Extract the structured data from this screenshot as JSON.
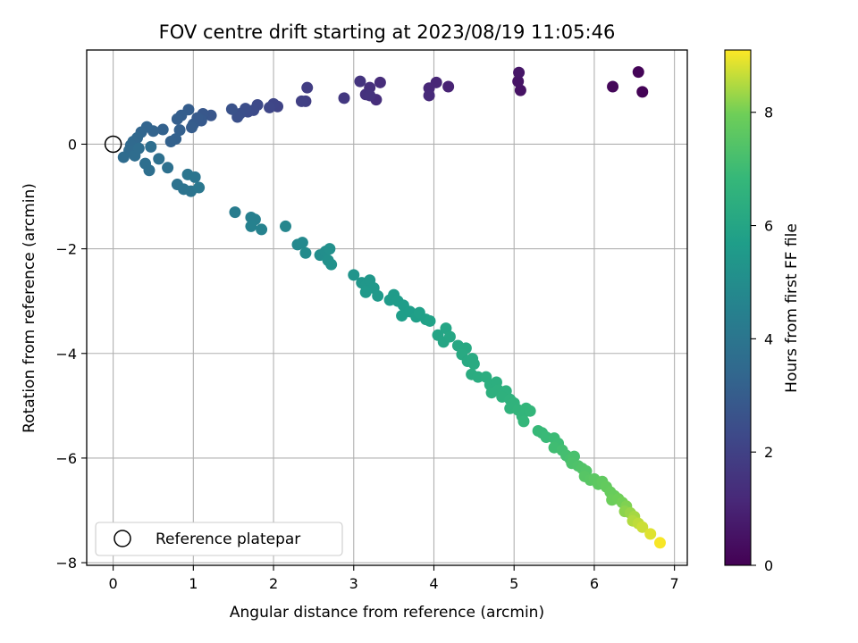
{
  "chart_data": {
    "type": "scatter",
    "title": "FOV centre drift starting at 2023/08/19 11:05:46",
    "xlabel": "Angular distance from reference (arcmin)",
    "ylabel": "Rotation from reference (arcmin)",
    "xlim": [
      -0.33,
      7.16
    ],
    "ylim": [
      -8.05,
      1.8
    ],
    "x_ticks": [
      0,
      1,
      2,
      3,
      4,
      5,
      6,
      7
    ],
    "y_ticks": [
      -8,
      -6,
      -4,
      -2,
      0
    ],
    "grid": true,
    "legend": {
      "position": "lower-left",
      "entries": [
        "Reference platepar"
      ]
    },
    "reference_point": {
      "x": 0,
      "y": 0,
      "label": "Reference platepar"
    },
    "colorbar": {
      "label": "Hours from first FF file",
      "range": [
        0,
        9.1
      ],
      "ticks": [
        0,
        2,
        4,
        6,
        8
      ],
      "colormap": "viridis"
    },
    "points": [
      {
        "x": 6.6,
        "y": 1.0,
        "t": 0.05
      },
      {
        "x": 6.55,
        "y": 1.38,
        "t": 0.1
      },
      {
        "x": 6.23,
        "y": 1.1,
        "t": 0.2
      },
      {
        "x": 5.08,
        "y": 1.03,
        "t": 0.5
      },
      {
        "x": 5.05,
        "y": 1.2,
        "t": 0.55
      },
      {
        "x": 5.06,
        "y": 1.37,
        "t": 0.6
      },
      {
        "x": 4.18,
        "y": 1.1,
        "t": 1.0
      },
      {
        "x": 4.03,
        "y": 1.18,
        "t": 1.1
      },
      {
        "x": 3.94,
        "y": 1.07,
        "t": 1.15
      },
      {
        "x": 3.94,
        "y": 0.93,
        "t": 1.2
      },
      {
        "x": 3.33,
        "y": 1.18,
        "t": 1.3
      },
      {
        "x": 3.28,
        "y": 0.85,
        "t": 1.35
      },
      {
        "x": 3.2,
        "y": 1.08,
        "t": 1.4
      },
      {
        "x": 3.15,
        "y": 0.95,
        "t": 1.45
      },
      {
        "x": 3.2,
        "y": 0.93,
        "t": 1.5
      },
      {
        "x": 3.08,
        "y": 1.2,
        "t": 1.55
      },
      {
        "x": 2.88,
        "y": 0.88,
        "t": 1.7
      },
      {
        "x": 2.42,
        "y": 1.08,
        "t": 1.85
      },
      {
        "x": 2.4,
        "y": 0.82,
        "t": 1.9
      },
      {
        "x": 2.35,
        "y": 0.82,
        "t": 1.95
      },
      {
        "x": 2.05,
        "y": 0.72,
        "t": 2.1
      },
      {
        "x": 2.0,
        "y": 0.77,
        "t": 2.15
      },
      {
        "x": 1.95,
        "y": 0.7,
        "t": 2.2
      },
      {
        "x": 1.8,
        "y": 0.75,
        "t": 2.3
      },
      {
        "x": 1.75,
        "y": 0.65,
        "t": 2.35
      },
      {
        "x": 1.68,
        "y": 0.62,
        "t": 2.4
      },
      {
        "x": 1.65,
        "y": 0.68,
        "t": 2.45
      },
      {
        "x": 1.58,
        "y": 0.58,
        "t": 2.5
      },
      {
        "x": 1.55,
        "y": 0.52,
        "t": 2.55
      },
      {
        "x": 1.48,
        "y": 0.67,
        "t": 2.6
      },
      {
        "x": 1.22,
        "y": 0.55,
        "t": 2.75
      },
      {
        "x": 1.12,
        "y": 0.58,
        "t": 2.8
      },
      {
        "x": 1.1,
        "y": 0.45,
        "t": 2.85
      },
      {
        "x": 1.05,
        "y": 0.5,
        "t": 2.9
      },
      {
        "x": 1.0,
        "y": 0.38,
        "t": 2.95
      },
      {
        "x": 0.98,
        "y": 0.32,
        "t": 3.0
      },
      {
        "x": 0.94,
        "y": 0.66,
        "t": 3.02
      },
      {
        "x": 0.85,
        "y": 0.55,
        "t": 3.05
      },
      {
        "x": 0.8,
        "y": 0.48,
        "t": 3.1
      },
      {
        "x": 0.83,
        "y": 0.27,
        "t": 3.12
      },
      {
        "x": 0.78,
        "y": 0.1,
        "t": 3.15
      },
      {
        "x": 0.72,
        "y": 0.05,
        "t": 3.18
      },
      {
        "x": 0.62,
        "y": 0.28,
        "t": 3.2
      },
      {
        "x": 0.5,
        "y": 0.25,
        "t": 3.25
      },
      {
        "x": 0.42,
        "y": 0.33,
        "t": 3.3
      },
      {
        "x": 0.35,
        "y": 0.23,
        "t": 3.35
      },
      {
        "x": 0.3,
        "y": 0.12,
        "t": 3.4
      },
      {
        "x": 0.25,
        "y": 0.05,
        "t": 3.45
      },
      {
        "x": 0.22,
        "y": -0.02,
        "t": 3.5
      },
      {
        "x": 0.2,
        "y": -0.12,
        "t": 3.55
      },
      {
        "x": 0.13,
        "y": -0.25,
        "t": 3.6
      },
      {
        "x": 0.27,
        "y": -0.22,
        "t": 3.62
      },
      {
        "x": 0.32,
        "y": -0.08,
        "t": 3.65
      },
      {
        "x": 0.47,
        "y": -0.05,
        "t": 3.68
      },
      {
        "x": 0.4,
        "y": -0.37,
        "t": 3.7
      },
      {
        "x": 0.45,
        "y": -0.5,
        "t": 3.72
      },
      {
        "x": 0.57,
        "y": -0.28,
        "t": 3.75
      },
      {
        "x": 0.68,
        "y": -0.45,
        "t": 3.78
      },
      {
        "x": 0.8,
        "y": -0.77,
        "t": 3.85
      },
      {
        "x": 0.88,
        "y": -0.86,
        "t": 3.9
      },
      {
        "x": 0.97,
        "y": -0.9,
        "t": 3.95
      },
      {
        "x": 0.93,
        "y": -0.58,
        "t": 3.98
      },
      {
        "x": 1.02,
        "y": -0.63,
        "t": 4.0
      },
      {
        "x": 1.07,
        "y": -0.83,
        "t": 4.05
      },
      {
        "x": 1.52,
        "y": -1.3,
        "t": 4.3
      },
      {
        "x": 1.72,
        "y": -1.4,
        "t": 4.4
      },
      {
        "x": 1.77,
        "y": -1.44,
        "t": 4.45
      },
      {
        "x": 1.72,
        "y": -1.57,
        "t": 4.5
      },
      {
        "x": 1.85,
        "y": -1.63,
        "t": 4.55
      },
      {
        "x": 2.15,
        "y": -1.57,
        "t": 4.7
      },
      {
        "x": 2.3,
        "y": -1.92,
        "t": 4.8
      },
      {
        "x": 2.36,
        "y": -1.88,
        "t": 4.85
      },
      {
        "x": 2.4,
        "y": -2.08,
        "t": 4.9
      },
      {
        "x": 2.58,
        "y": -2.12,
        "t": 5.0
      },
      {
        "x": 2.65,
        "y": -2.05,
        "t": 5.05
      },
      {
        "x": 2.7,
        "y": -2.0,
        "t": 5.1
      },
      {
        "x": 2.68,
        "y": -2.22,
        "t": 5.12
      },
      {
        "x": 2.72,
        "y": -2.3,
        "t": 5.15
      },
      {
        "x": 3.0,
        "y": -2.5,
        "t": 5.3
      },
      {
        "x": 3.1,
        "y": -2.65,
        "t": 5.35
      },
      {
        "x": 3.15,
        "y": -2.7,
        "t": 5.4
      },
      {
        "x": 3.2,
        "y": -2.6,
        "t": 5.42
      },
      {
        "x": 3.25,
        "y": -2.75,
        "t": 5.45
      },
      {
        "x": 3.15,
        "y": -2.83,
        "t": 5.47
      },
      {
        "x": 3.3,
        "y": -2.9,
        "t": 5.5
      },
      {
        "x": 3.45,
        "y": -2.98,
        "t": 5.55
      },
      {
        "x": 3.5,
        "y": -2.88,
        "t": 5.58
      },
      {
        "x": 3.55,
        "y": -3.0,
        "t": 5.6
      },
      {
        "x": 3.62,
        "y": -3.08,
        "t": 5.65
      },
      {
        "x": 3.6,
        "y": -3.28,
        "t": 5.68
      },
      {
        "x": 3.7,
        "y": -3.2,
        "t": 5.7
      },
      {
        "x": 3.78,
        "y": -3.3,
        "t": 5.75
      },
      {
        "x": 3.82,
        "y": -3.22,
        "t": 5.78
      },
      {
        "x": 3.9,
        "y": -3.35,
        "t": 5.8
      },
      {
        "x": 3.95,
        "y": -3.38,
        "t": 5.85
      },
      {
        "x": 4.05,
        "y": -3.65,
        "t": 5.95
      },
      {
        "x": 4.15,
        "y": -3.52,
        "t": 6.0
      },
      {
        "x": 4.12,
        "y": -3.78,
        "t": 6.02
      },
      {
        "x": 4.2,
        "y": -3.68,
        "t": 6.05
      },
      {
        "x": 4.3,
        "y": -3.85,
        "t": 6.1
      },
      {
        "x": 4.4,
        "y": -3.9,
        "t": 6.15
      },
      {
        "x": 4.35,
        "y": -4.02,
        "t": 6.18
      },
      {
        "x": 4.42,
        "y": -4.15,
        "t": 6.2
      },
      {
        "x": 4.48,
        "y": -4.1,
        "t": 6.22
      },
      {
        "x": 4.5,
        "y": -4.2,
        "t": 6.25
      },
      {
        "x": 4.47,
        "y": -4.4,
        "t": 6.3
      },
      {
        "x": 4.55,
        "y": -4.45,
        "t": 6.33
      },
      {
        "x": 4.65,
        "y": -4.45,
        "t": 6.35
      },
      {
        "x": 4.7,
        "y": -4.6,
        "t": 6.4
      },
      {
        "x": 4.78,
        "y": -4.55,
        "t": 6.42
      },
      {
        "x": 4.8,
        "y": -4.7,
        "t": 6.45
      },
      {
        "x": 4.72,
        "y": -4.75,
        "t": 6.47
      },
      {
        "x": 4.9,
        "y": -4.72,
        "t": 6.5
      },
      {
        "x": 4.85,
        "y": -4.83,
        "t": 6.52
      },
      {
        "x": 4.95,
        "y": -4.88,
        "t": 6.55
      },
      {
        "x": 5.0,
        "y": -4.95,
        "t": 6.6
      },
      {
        "x": 4.95,
        "y": -5.05,
        "t": 6.62
      },
      {
        "x": 5.05,
        "y": -5.08,
        "t": 6.65
      },
      {
        "x": 5.1,
        "y": -5.2,
        "t": 6.7
      },
      {
        "x": 5.15,
        "y": -5.05,
        "t": 6.72
      },
      {
        "x": 5.2,
        "y": -5.1,
        "t": 6.75
      },
      {
        "x": 5.12,
        "y": -5.3,
        "t": 6.78
      },
      {
        "x": 5.3,
        "y": -5.48,
        "t": 6.85
      },
      {
        "x": 5.35,
        "y": -5.52,
        "t": 6.88
      },
      {
        "x": 5.4,
        "y": -5.6,
        "t": 6.9
      },
      {
        "x": 5.5,
        "y": -5.62,
        "t": 6.95
      },
      {
        "x": 5.55,
        "y": -5.72,
        "t": 7.0
      },
      {
        "x": 5.5,
        "y": -5.8,
        "t": 7.05
      },
      {
        "x": 5.6,
        "y": -5.85,
        "t": 7.1
      },
      {
        "x": 5.65,
        "y": -5.95,
        "t": 7.15
      },
      {
        "x": 5.7,
        "y": -6.02,
        "t": 7.2
      },
      {
        "x": 5.75,
        "y": -5.97,
        "t": 7.25
      },
      {
        "x": 5.72,
        "y": -6.1,
        "t": 7.3
      },
      {
        "x": 5.8,
        "y": -6.15,
        "t": 7.35
      },
      {
        "x": 5.85,
        "y": -6.2,
        "t": 7.4
      },
      {
        "x": 5.9,
        "y": -6.25,
        "t": 7.45
      },
      {
        "x": 5.88,
        "y": -6.35,
        "t": 7.5
      },
      {
        "x": 5.95,
        "y": -6.42,
        "t": 7.55
      },
      {
        "x": 6.0,
        "y": -6.4,
        "t": 7.6
      },
      {
        "x": 6.05,
        "y": -6.5,
        "t": 7.65
      },
      {
        "x": 6.1,
        "y": -6.45,
        "t": 7.7
      },
      {
        "x": 6.15,
        "y": -6.55,
        "t": 7.75
      },
      {
        "x": 6.2,
        "y": -6.65,
        "t": 7.8
      },
      {
        "x": 6.25,
        "y": -6.72,
        "t": 7.85
      },
      {
        "x": 6.22,
        "y": -6.8,
        "t": 7.9
      },
      {
        "x": 6.3,
        "y": -6.78,
        "t": 7.95
      },
      {
        "x": 6.35,
        "y": -6.85,
        "t": 8.0
      },
      {
        "x": 6.4,
        "y": -6.92,
        "t": 8.1
      },
      {
        "x": 6.38,
        "y": -7.02,
        "t": 8.2
      },
      {
        "x": 6.45,
        "y": -7.05,
        "t": 8.3
      },
      {
        "x": 6.5,
        "y": -7.12,
        "t": 8.4
      },
      {
        "x": 6.48,
        "y": -7.2,
        "t": 8.5
      },
      {
        "x": 6.55,
        "y": -7.25,
        "t": 8.6
      },
      {
        "x": 6.6,
        "y": -7.32,
        "t": 8.7
      },
      {
        "x": 6.7,
        "y": -7.45,
        "t": 8.85
      },
      {
        "x": 6.82,
        "y": -7.62,
        "t": 9.05
      }
    ]
  }
}
